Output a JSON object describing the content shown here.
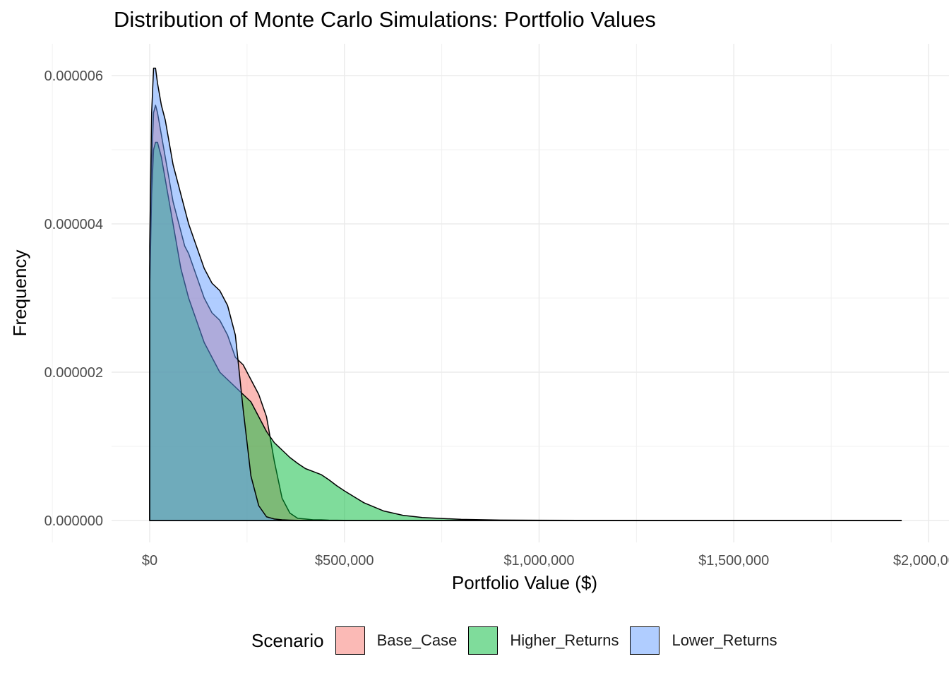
{
  "chart_data": {
    "type": "area",
    "title": "Distribution of Monte Carlo Simulations: Portfolio Values",
    "xlabel": "Portfolio Value ($)",
    "ylabel": "Frequency",
    "xlim": [
      -100000,
      2000000
    ],
    "ylim": [
      -3e-07,
      6.6e-06
    ],
    "x_ticks": [
      0,
      500000,
      1000000,
      1500000,
      2000000
    ],
    "x_tick_labels": [
      "$0",
      "$500,000",
      "$1,000,000",
      "$1,500,000",
      "$2,000,000"
    ],
    "y_ticks": [
      0,
      2e-06,
      4e-06,
      6e-06
    ],
    "y_tick_labels": [
      "0.000000",
      "0.000002",
      "0.000004",
      "0.000006"
    ],
    "grid": true,
    "legend_position": "bottom",
    "legend_title": "Scenario",
    "series": [
      {
        "name": "Base_Case",
        "color": "#F8766D",
        "x": [
          0,
          5000,
          10000,
          15000,
          20000,
          30000,
          40000,
          50000,
          60000,
          70000,
          80000,
          90000,
          100000,
          120000,
          140000,
          160000,
          180000,
          200000,
          220000,
          240000,
          260000,
          280000,
          300000,
          320000,
          340000,
          360000,
          380000,
          400000,
          420000,
          440000,
          460000,
          480000,
          500000,
          550000,
          600000,
          650000,
          700000,
          800000,
          900000,
          1000000,
          1200000,
          1400000,
          1600000,
          1800000,
          1930000
        ],
        "values": [
          3.4e-06,
          4.8e-06,
          5.5e-06,
          5.6e-06,
          5.5e-06,
          5.2e-06,
          4.9e-06,
          4.6e-06,
          4.3e-06,
          4.1e-06,
          3.9e-06,
          3.7e-06,
          3.6e-06,
          3.3e-06,
          3e-06,
          2.8e-06,
          2.7e-06,
          2.5e-06,
          2.2e-06,
          2.1e-06,
          1.9e-06,
          1.7e-06,
          1.4e-06,
          8e-07,
          3e-07,
          1e-07,
          3e-08,
          2e-08,
          1e-08,
          1e-08,
          5e-09,
          3e-09,
          2e-09,
          1e-09,
          0,
          0,
          0,
          0,
          0,
          0,
          0,
          0,
          0,
          0,
          0
        ]
      },
      {
        "name": "Higher_Returns",
        "color": "#00BA38",
        "x": [
          0,
          5000,
          10000,
          15000,
          20000,
          30000,
          40000,
          50000,
          60000,
          70000,
          80000,
          90000,
          100000,
          120000,
          140000,
          160000,
          180000,
          200000,
          220000,
          240000,
          260000,
          280000,
          300000,
          320000,
          340000,
          360000,
          380000,
          400000,
          420000,
          440000,
          460000,
          480000,
          500000,
          550000,
          600000,
          650000,
          700000,
          800000,
          900000,
          1000000,
          1200000,
          1400000,
          1600000,
          1800000,
          1930000
        ],
        "values": [
          3.1e-06,
          4.4e-06,
          5e-06,
          5.1e-06,
          5.1e-06,
          4.9e-06,
          4.6e-06,
          4.3e-06,
          4e-06,
          3.7e-06,
          3.4e-06,
          3.2e-06,
          3e-06,
          2.7e-06,
          2.4e-06,
          2.2e-06,
          2e-06,
          1.9e-06,
          1.8e-06,
          1.7e-06,
          1.6e-06,
          1.4e-06,
          1.2e-06,
          1.05e-06,
          9.5e-07,
          8.5e-07,
          7.7e-07,
          7e-07,
          6.6e-07,
          6.2e-07,
          5.5e-07,
          4.7e-07,
          4e-07,
          2.4e-07,
          1.3e-07,
          7e-08,
          4e-08,
          1.5e-08,
          6e-09,
          3e-09,
          1e-09,
          5e-10,
          3e-10,
          2e-10,
          0
        ]
      },
      {
        "name": "Lower_Returns",
        "color": "#619CFF",
        "x": [
          0,
          5000,
          10000,
          15000,
          20000,
          30000,
          40000,
          50000,
          60000,
          70000,
          80000,
          90000,
          100000,
          120000,
          140000,
          160000,
          180000,
          200000,
          220000,
          240000,
          260000,
          280000,
          300000,
          320000,
          340000,
          360000,
          380000,
          400000,
          420000,
          440000,
          460000,
          480000,
          500000,
          550000,
          600000,
          650000,
          700000,
          800000,
          900000,
          1000000,
          1200000,
          1400000,
          1600000,
          1800000,
          1930000
        ],
        "values": [
          3.7e-06,
          5.5e-06,
          6.1e-06,
          6.1e-06,
          5.9e-06,
          5.6e-06,
          5.4e-06,
          5.1e-06,
          4.8e-06,
          4.6e-06,
          4.4e-06,
          4.2e-06,
          4e-06,
          3.7e-06,
          3.4e-06,
          3.2e-06,
          3.1e-06,
          2.9e-06,
          2.5e-06,
          1.5e-06,
          6e-07,
          2e-07,
          5e-08,
          2e-08,
          1e-08,
          5e-09,
          2e-09,
          1e-09,
          0,
          0,
          0,
          0,
          0,
          0,
          0,
          0,
          0,
          0,
          0,
          0,
          0,
          0,
          0,
          0,
          0
        ]
      }
    ]
  }
}
